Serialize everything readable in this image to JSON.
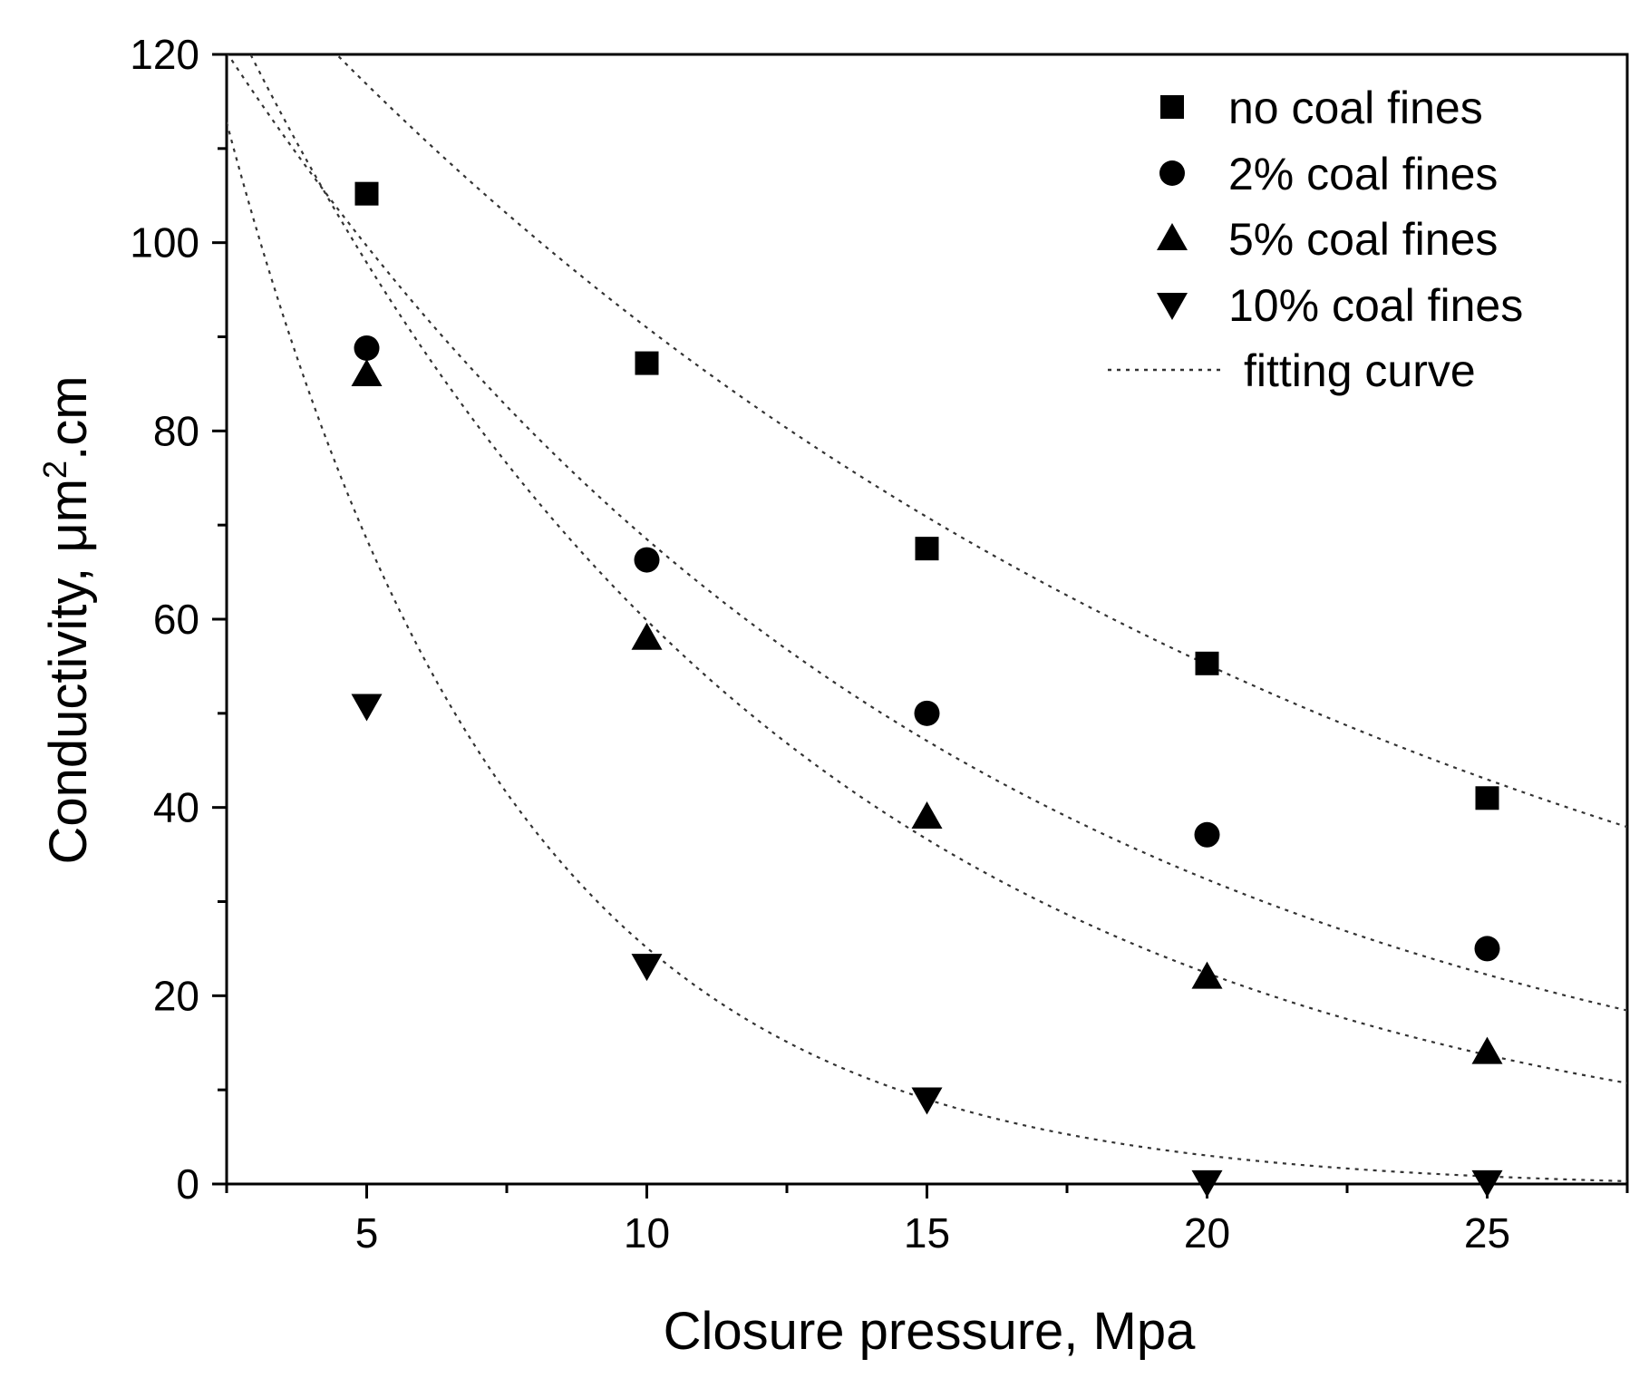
{
  "chart_data": {
    "type": "scatter",
    "title": "",
    "xlabel": "Closure pressure, Mpa",
    "ylabel": "Conductivity, μm².cm",
    "ylabel_parts": {
      "main": "Conductivity, μm",
      "sup": "2",
      "tail": ".cm"
    },
    "xlim": [
      2.5,
      27.5
    ],
    "ylim": [
      0,
      120
    ],
    "x_ticks": [
      5,
      10,
      15,
      20,
      25
    ],
    "x_tick_labels": [
      "5",
      "10",
      "15",
      "20",
      "25"
    ],
    "y_ticks": [
      0,
      20,
      40,
      60,
      80,
      100,
      120
    ],
    "y_tick_labels": [
      "0",
      "20",
      "40",
      "60",
      "80",
      "100",
      "120"
    ],
    "legend_position": "top-right",
    "series": [
      {
        "name": "no coal fines",
        "marker": "square",
        "x": [
          5,
          10,
          15,
          20,
          25
        ],
        "y": [
          105.2,
          87.2,
          67.5,
          55.3,
          41.0
        ],
        "fit": {
          "a": 150,
          "b": 0.05
        }
      },
      {
        "name": "2% coal fines",
        "marker": "circle",
        "x": [
          5,
          10,
          15,
          20,
          25
        ],
        "y": [
          88.8,
          66.3,
          50.0,
          37.1,
          25.0
        ],
        "fit": {
          "a": 145,
          "b": 0.075
        }
      },
      {
        "name": "5% coal fines",
        "marker": "triangle-up",
        "x": [
          5,
          10,
          15,
          20,
          25
        ],
        "y": [
          86.0,
          58.0,
          39.0,
          22.0,
          14.0
        ],
        "fit": {
          "a": 160,
          "b": 0.0983
        }
      },
      {
        "name": "10% coal fines",
        "marker": "triangle-down",
        "x": [
          5,
          10,
          15,
          20,
          25
        ],
        "y": [
          50.8,
          23.2,
          9.0,
          0.2,
          0.2
        ],
        "fit": {
          "a": 186,
          "b": 0.1983,
          "c": -0.5
        }
      }
    ],
    "fit_legend_label": "fitting curve",
    "colors": {
      "marker": "#000000",
      "axis": "#000000",
      "fit_line": "#333333"
    }
  }
}
